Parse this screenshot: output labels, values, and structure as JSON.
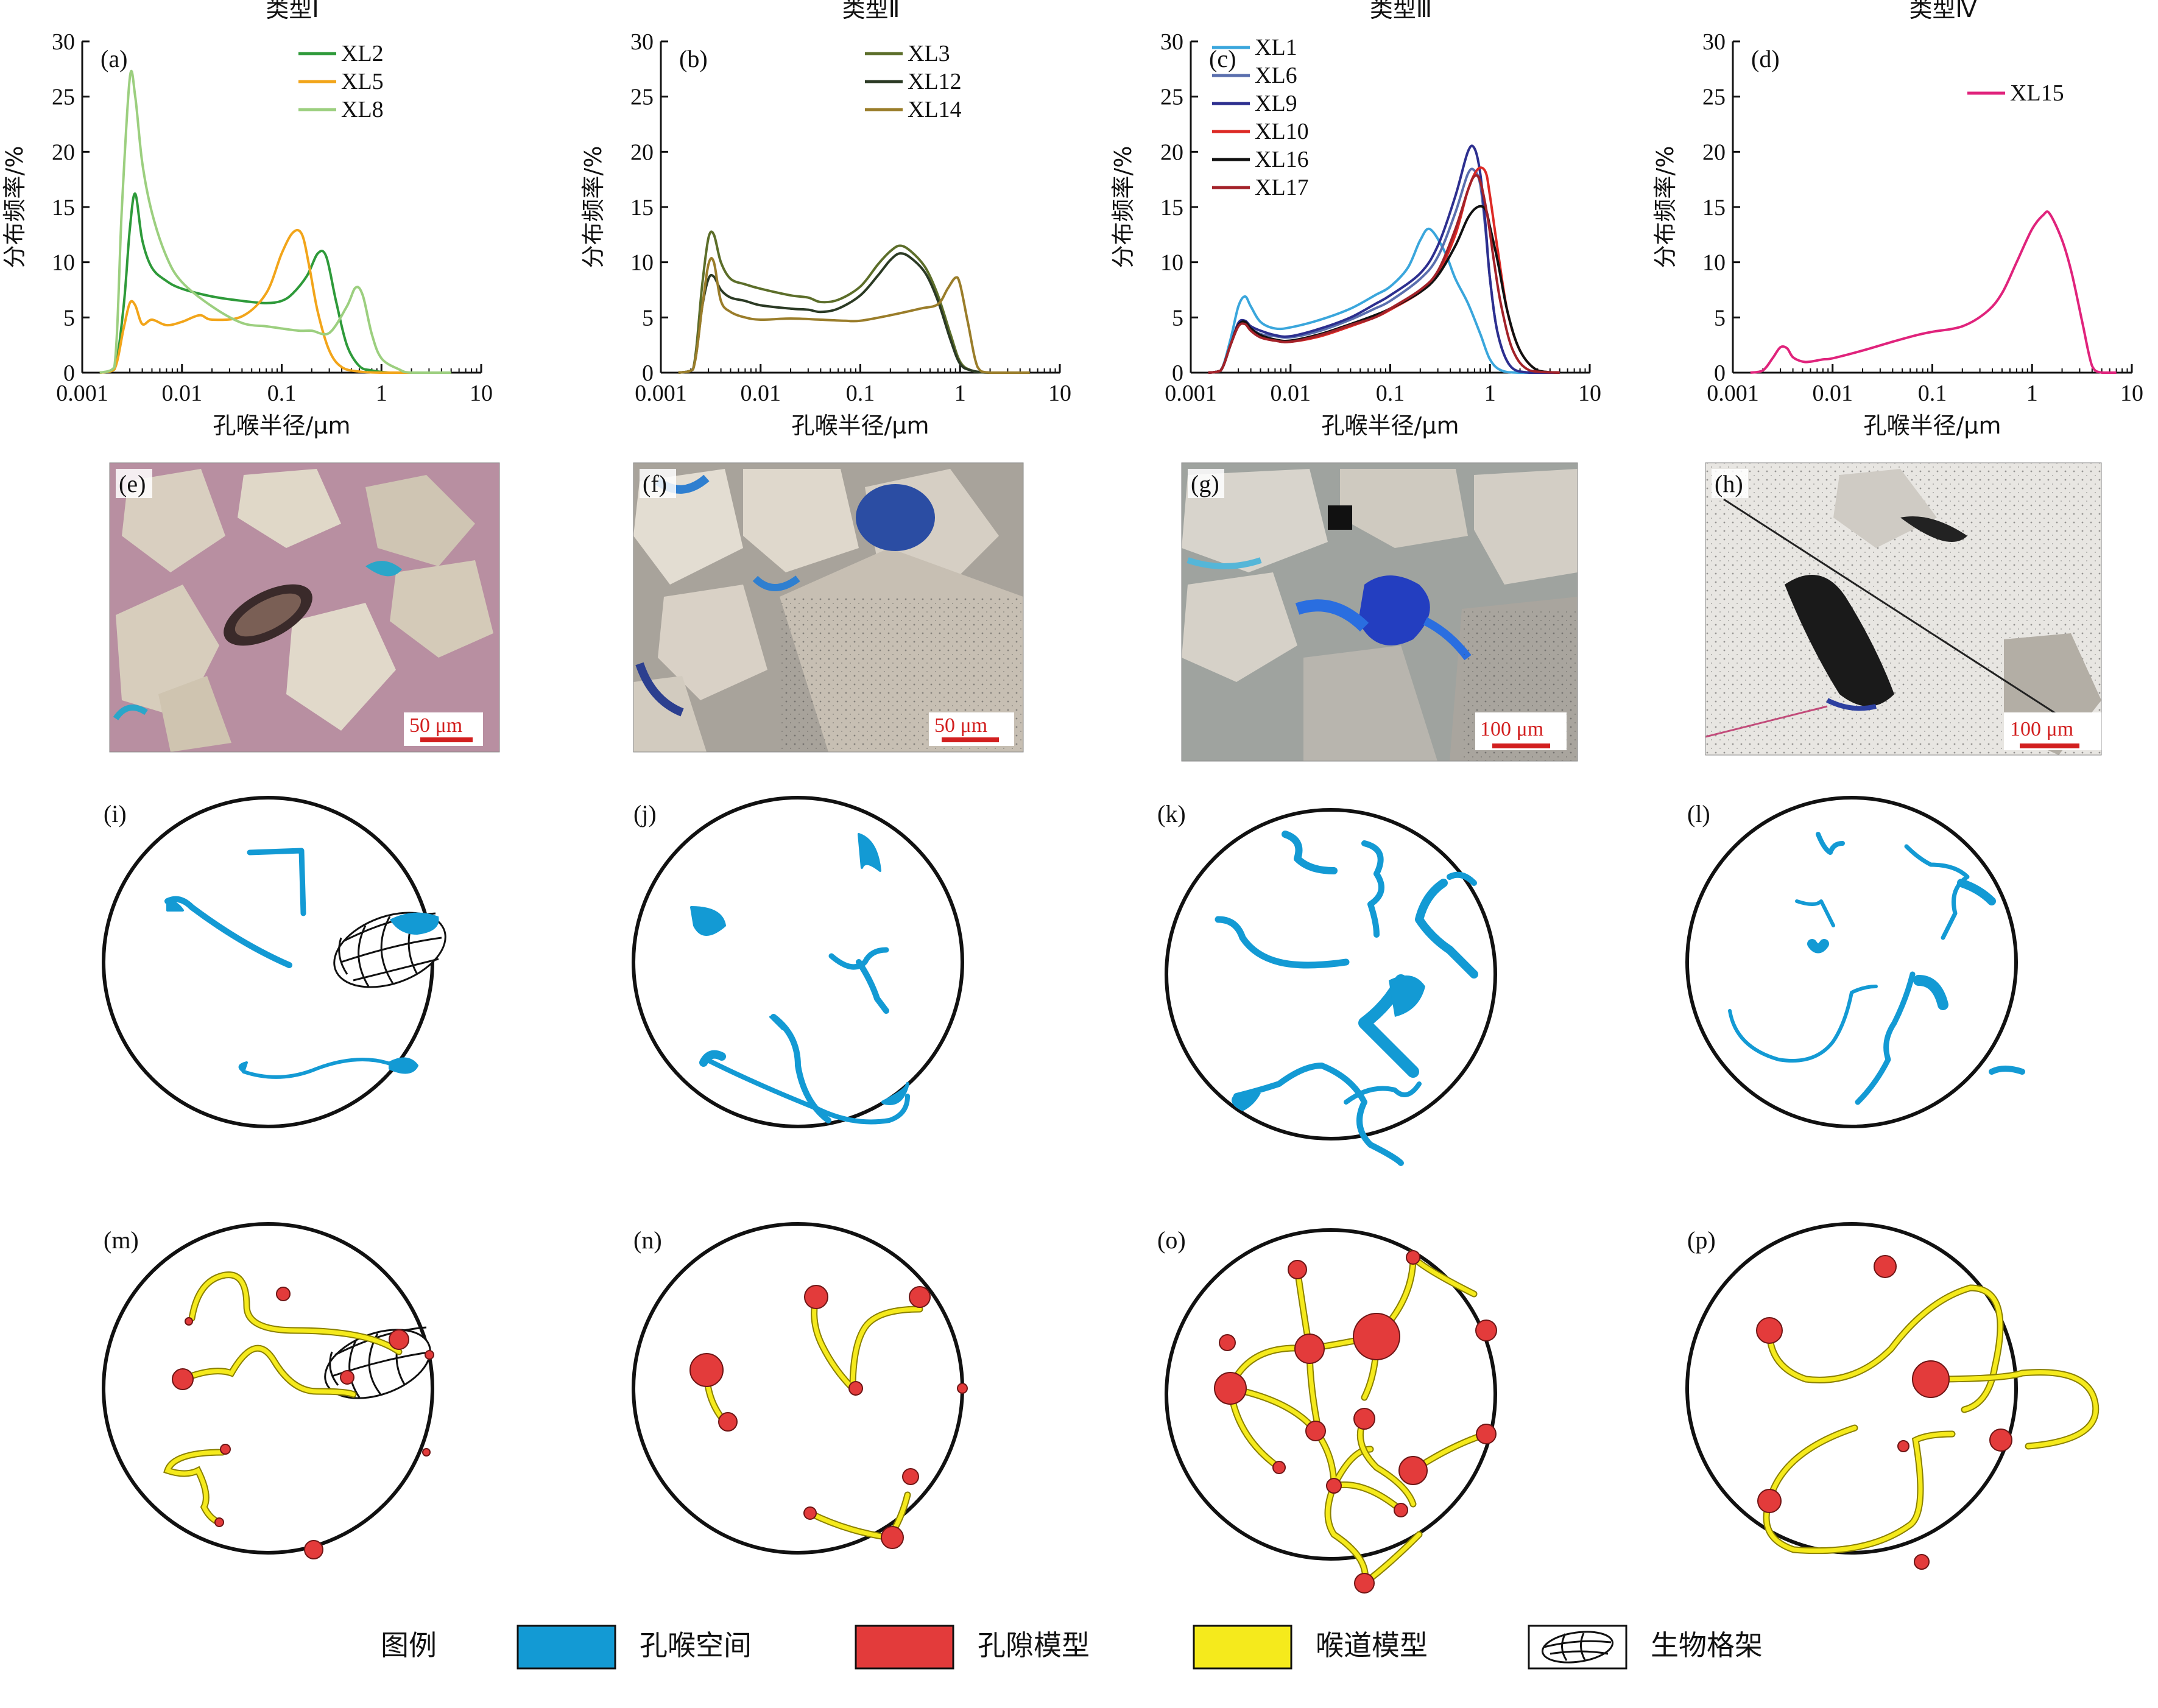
{
  "chart_data": [
    {
      "panel": "(a)",
      "title": "类型Ⅰ",
      "type": "line",
      "xlabel": "孔喉半径/μm",
      "ylabel": "分布频率/%",
      "xscale": "log",
      "xlim": [
        0.001,
        10
      ],
      "ylim": [
        0,
        30
      ],
      "xticks": [
        "0.001",
        "0.01",
        "0.1",
        "1",
        "10"
      ],
      "yticks": [
        "0",
        "5",
        "10",
        "15",
        "20",
        "25",
        "30"
      ],
      "series": [
        {
          "name": "XL2",
          "color": "#2e9a3a",
          "x": [
            0.0015,
            0.0021,
            0.0026,
            0.003,
            0.0034,
            0.004,
            0.005,
            0.007,
            0.01,
            0.02,
            0.04,
            0.07,
            0.1,
            0.13,
            0.18,
            0.23,
            0.28,
            0.35,
            0.45,
            0.6,
            0.8,
            1.2,
            2,
            5
          ],
          "y": [
            0,
            0.3,
            6,
            13,
            16.2,
            12,
            9.5,
            8.3,
            7.6,
            6.9,
            6.5,
            6.3,
            6.5,
            7.2,
            8.8,
            10.8,
            10.5,
            6.5,
            2.5,
            0.6,
            0.2,
            0,
            0,
            0
          ]
        },
        {
          "name": "XL5",
          "color": "#f2a51a",
          "x": [
            0.0015,
            0.0021,
            0.0026,
            0.003,
            0.0034,
            0.004,
            0.005,
            0.007,
            0.01,
            0.015,
            0.02,
            0.04,
            0.07,
            0.1,
            0.13,
            0.16,
            0.19,
            0.23,
            0.3,
            0.4,
            0.6,
            1,
            2,
            5
          ],
          "y": [
            0,
            0.3,
            4,
            6.3,
            6.1,
            4.4,
            4.8,
            4.3,
            4.6,
            5.2,
            4.8,
            5.1,
            7.2,
            10.8,
            12.7,
            12.5,
            9.5,
            5.5,
            2,
            0.5,
            0.1,
            0,
            0,
            0
          ]
        },
        {
          "name": "XL8",
          "color": "#9ccf7f",
          "x": [
            0.0015,
            0.0021,
            0.0025,
            0.003,
            0.0034,
            0.004,
            0.005,
            0.007,
            0.01,
            0.02,
            0.04,
            0.07,
            0.1,
            0.15,
            0.2,
            0.3,
            0.45,
            0.55,
            0.65,
            0.8,
            1,
            1.5,
            2,
            5
          ],
          "y": [
            0,
            0.5,
            15,
            26.7,
            25,
            19,
            14.5,
            10.5,
            8.2,
            6,
            4.5,
            4.2,
            4,
            3.8,
            3.8,
            3.6,
            6,
            7.7,
            7,
            3.5,
            1.3,
            0.3,
            0,
            0
          ]
        }
      ]
    },
    {
      "panel": "(b)",
      "title": "类型Ⅱ",
      "type": "line",
      "xlabel": "孔喉半径/μm",
      "ylabel": "分布频率/%",
      "xscale": "log",
      "xlim": [
        0.001,
        10
      ],
      "ylim": [
        0,
        30
      ],
      "xticks": [
        "0.001",
        "0.01",
        "0.1",
        "1",
        "10"
      ],
      "yticks": [
        "0",
        "5",
        "10",
        "15",
        "20",
        "25",
        "30"
      ],
      "series": [
        {
          "name": "XL3",
          "color": "#5c6e2a",
          "x": [
            0.0015,
            0.0021,
            0.0026,
            0.003,
            0.0034,
            0.004,
            0.005,
            0.007,
            0.01,
            0.02,
            0.03,
            0.04,
            0.06,
            0.1,
            0.15,
            0.2,
            0.25,
            0.32,
            0.45,
            0.6,
            0.8,
            1,
            1.3,
            2,
            5
          ],
          "y": [
            0,
            0.3,
            8,
            12.2,
            12.5,
            10,
            8.5,
            8,
            7.6,
            7,
            6.8,
            6.4,
            6.6,
            7.8,
            9.8,
            11,
            11.5,
            11,
            9.5,
            7,
            3.5,
            1,
            0.2,
            0,
            0
          ]
        },
        {
          "name": "XL12",
          "color": "#2b3a24",
          "x": [
            0.0015,
            0.0021,
            0.0026,
            0.003,
            0.0034,
            0.004,
            0.005,
            0.007,
            0.01,
            0.02,
            0.03,
            0.04,
            0.06,
            0.1,
            0.15,
            0.2,
            0.25,
            0.32,
            0.45,
            0.6,
            0.8,
            1,
            1.3,
            2,
            5
          ],
          "y": [
            0,
            0.3,
            6,
            8.5,
            8.7,
            7.5,
            6.8,
            6.5,
            6.1,
            5.8,
            5.7,
            5.5,
            5.8,
            7,
            8.8,
            10.2,
            10.8,
            10.4,
            9,
            6.5,
            3,
            0.8,
            0.2,
            0,
            0
          ]
        },
        {
          "name": "XL14",
          "color": "#9a7d2a",
          "x": [
            0.0015,
            0.0021,
            0.0026,
            0.003,
            0.0034,
            0.004,
            0.005,
            0.007,
            0.01,
            0.02,
            0.04,
            0.07,
            0.1,
            0.2,
            0.4,
            0.6,
            0.75,
            0.9,
            1,
            1.2,
            1.5,
            2,
            5
          ],
          "y": [
            0,
            0.3,
            6,
            9.8,
            10,
            6.5,
            5.5,
            5,
            4.8,
            4.9,
            4.8,
            4.7,
            4.7,
            5.2,
            5.8,
            6.2,
            7.6,
            8.6,
            8,
            4.5,
            0.5,
            0,
            0
          ]
        }
      ]
    },
    {
      "panel": "(c)",
      "title": "类型Ⅲ",
      "type": "line",
      "xlabel": "孔喉半径/μm",
      "ylabel": "分布频率/%",
      "xscale": "log",
      "xlim": [
        0.001,
        10
      ],
      "ylim": [
        0,
        30
      ],
      "xticks": [
        "0.001",
        "0.01",
        "0.1",
        "1",
        "10"
      ],
      "yticks": [
        "0",
        "5",
        "10",
        "15",
        "20",
        "25",
        "30"
      ],
      "series": [
        {
          "name": "XL1",
          "color": "#3aa6dc",
          "x": [
            0.0015,
            0.002,
            0.0025,
            0.003,
            0.0035,
            0.004,
            0.005,
            0.007,
            0.01,
            0.02,
            0.04,
            0.07,
            0.1,
            0.15,
            0.2,
            0.25,
            0.35,
            0.45,
            0.6,
            0.8,
            1,
            1.3,
            2,
            5
          ],
          "y": [
            0,
            0.2,
            3,
            6,
            6.9,
            6,
            4.6,
            4,
            4.1,
            4.8,
            5.8,
            7,
            7.8,
            9.5,
            12,
            13,
            11,
            8.5,
            6.3,
            3.5,
            1.2,
            0.2,
            0,
            0
          ]
        },
        {
          "name": "XL6",
          "color": "#5a6fae",
          "x": [
            0.0015,
            0.002,
            0.0025,
            0.003,
            0.0035,
            0.004,
            0.005,
            0.007,
            0.01,
            0.02,
            0.04,
            0.07,
            0.1,
            0.2,
            0.3,
            0.45,
            0.6,
            0.7,
            0.8,
            0.9,
            1,
            1.2,
            1.6,
            2.5,
            5
          ],
          "y": [
            0,
            0.2,
            2.5,
            4.2,
            4.5,
            4,
            3.5,
            3.3,
            3.2,
            3.8,
            4.8,
            5.8,
            6.5,
            8.5,
            10.5,
            14.5,
            18,
            18.3,
            17,
            13,
            8.5,
            3.5,
            0.6,
            0,
            0
          ]
        },
        {
          "name": "XL9",
          "color": "#2d2f8f",
          "x": [
            0.0015,
            0.002,
            0.0025,
            0.003,
            0.0035,
            0.004,
            0.005,
            0.007,
            0.01,
            0.02,
            0.04,
            0.07,
            0.1,
            0.2,
            0.3,
            0.45,
            0.6,
            0.7,
            0.8,
            0.9,
            1,
            1.2,
            1.6,
            2.5,
            5
          ],
          "y": [
            0,
            0.2,
            2.5,
            4.5,
            4.7,
            4.2,
            3.8,
            3.4,
            3.3,
            4,
            5,
            6.2,
            7,
            9,
            11.5,
            16,
            20,
            20.3,
            18,
            13.5,
            8.5,
            3.5,
            0.6,
            0,
            0
          ]
        },
        {
          "name": "XL10",
          "color": "#dd2a25",
          "x": [
            0.0015,
            0.002,
            0.0025,
            0.003,
            0.0035,
            0.004,
            0.005,
            0.007,
            0.01,
            0.02,
            0.04,
            0.07,
            0.1,
            0.2,
            0.3,
            0.45,
            0.6,
            0.75,
            0.9,
            1,
            1.2,
            1.5,
            2,
            3,
            5
          ],
          "y": [
            0,
            0.2,
            2.5,
            4.3,
            4.5,
            3.8,
            3.2,
            2.9,
            2.8,
            3.3,
            4.2,
            5,
            5.7,
            7.3,
            9,
            12.5,
            16.5,
            18.4,
            18.2,
            16,
            11,
            5.5,
            2,
            0.2,
            0
          ]
        },
        {
          "name": "XL16",
          "color": "#111111",
          "x": [
            0.0015,
            0.002,
            0.0025,
            0.003,
            0.0035,
            0.004,
            0.005,
            0.007,
            0.01,
            0.02,
            0.04,
            0.07,
            0.1,
            0.2,
            0.3,
            0.45,
            0.6,
            0.75,
            0.9,
            1,
            1.2,
            1.5,
            2,
            3,
            5
          ],
          "y": [
            0,
            0.2,
            2.5,
            4.3,
            4.6,
            4,
            3.4,
            3,
            2.9,
            3.5,
            4.4,
            5.2,
            5.8,
            7.3,
            8.8,
            11.5,
            14,
            15,
            14.8,
            13.2,
            10,
            5.5,
            2,
            0.2,
            0
          ]
        },
        {
          "name": "XL17",
          "color": "#a32229",
          "x": [
            0.0015,
            0.002,
            0.0025,
            0.003,
            0.0035,
            0.004,
            0.005,
            0.007,
            0.01,
            0.02,
            0.04,
            0.07,
            0.1,
            0.2,
            0.3,
            0.45,
            0.6,
            0.7,
            0.8,
            0.95,
            1.1,
            1.3,
            1.7,
            2.5,
            5
          ],
          "y": [
            0,
            0.2,
            2.5,
            4.2,
            4.4,
            3.8,
            3.2,
            2.9,
            2.8,
            3.4,
            4.3,
            5,
            5.8,
            7.5,
            9.2,
            13,
            16.5,
            17.8,
            17.3,
            14,
            10,
            6,
            2,
            0.2,
            0
          ]
        }
      ]
    },
    {
      "panel": "(d)",
      "title": "类型Ⅳ",
      "type": "line",
      "xlabel": "孔喉半径/μm",
      "ylabel": "分布频率/%",
      "xscale": "log",
      "xlim": [
        0.001,
        10
      ],
      "ylim": [
        0,
        30
      ],
      "xticks": [
        "0.001",
        "0.01",
        "0.1",
        "1",
        "10"
      ],
      "yticks": [
        "0",
        "5",
        "10",
        "15",
        "20",
        "25",
        "30"
      ],
      "series": [
        {
          "name": "XL15",
          "color": "#e0237c",
          "x": [
            0.0015,
            0.002,
            0.0025,
            0.003,
            0.0035,
            0.004,
            0.005,
            0.006,
            0.008,
            0.01,
            0.02,
            0.04,
            0.07,
            0.1,
            0.2,
            0.35,
            0.5,
            0.7,
            1,
            1.3,
            1.5,
            2,
            2.5,
            3.2,
            4,
            5,
            7
          ],
          "y": [
            0,
            0.2,
            1.3,
            2.3,
            2.2,
            1.4,
            1,
            1,
            1.2,
            1.3,
            2,
            2.8,
            3.4,
            3.7,
            4.2,
            5.5,
            7.2,
            10,
            13,
            14.3,
            14.4,
            12,
            9,
            4.5,
            0.6,
            0,
            0
          ]
        }
      ]
    }
  ],
  "column_titles": [
    "类型Ⅰ",
    "类型Ⅱ",
    "类型Ⅲ",
    "类型Ⅳ"
  ],
  "photo_panels": [
    {
      "label": "(e)",
      "scale_bar": "50 μm"
    },
    {
      "label": "(f)",
      "scale_bar": "50 μm"
    },
    {
      "label": "(g)",
      "scale_bar": "100 μm"
    },
    {
      "label": "(h)",
      "scale_bar": "100 μm"
    }
  ],
  "pore_panels": [
    "(i)",
    "(j)",
    "(k)",
    "(l)"
  ],
  "model_panels": [
    "(m)",
    "(n)",
    "(o)",
    "(p)"
  ],
  "colors": {
    "pore_throat_space": "#139ad4",
    "pore_model": "#e33b3b",
    "throat_model": "#f5ea1c",
    "scale_bar": "#d21f1f"
  },
  "legend": {
    "title": "图例",
    "items": [
      {
        "label": "孔喉空间",
        "swatch": "pore_throat_space"
      },
      {
        "label": "孔隙模型",
        "swatch": "pore_model"
      },
      {
        "label": "喉道模型",
        "swatch": "throat_model"
      },
      {
        "label": "生物格架",
        "swatch": "bio_frame"
      }
    ]
  }
}
